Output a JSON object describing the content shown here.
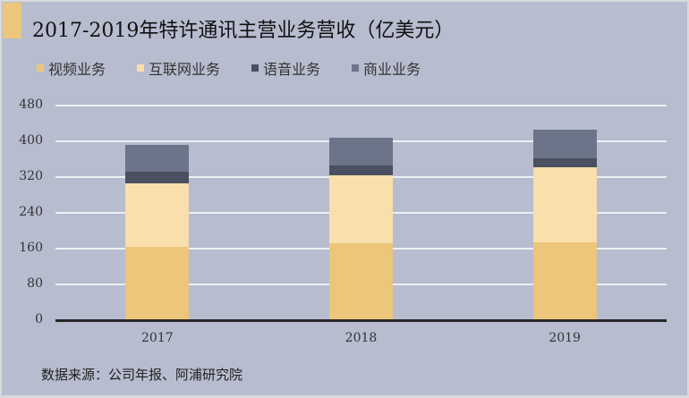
{
  "title": "2017-2019年特许通讯主营业务营收（亿美元）",
  "source": "数据来源：公司年报、阿浦研究院",
  "colors": {
    "background": "#b7bccf",
    "accent": "#ecc67a",
    "gridline": "#eef0f4",
    "axis": "#262626"
  },
  "legend": [
    {
      "label": "视频业务",
      "color": "#ecc67a"
    },
    {
      "label": "互联网业务",
      "color": "#f8dfab"
    },
    {
      "label": "语音业务",
      "color": "#4a5060"
    },
    {
      "label": "商业业务",
      "color": "#6c7489"
    }
  ],
  "chart_data": {
    "type": "bar",
    "stacked": true,
    "title": "2017-2019年特许通讯主营业务营收（亿美元）",
    "xlabel": "",
    "ylabel": "",
    "categories": [
      "2017",
      "2018",
      "2019"
    ],
    "series": [
      {
        "name": "视频业务",
        "color": "#ecc67a",
        "values": [
          164,
          172,
          174
        ]
      },
      {
        "name": "互联网业务",
        "color": "#f8dfab",
        "values": [
          142,
          152,
          168
        ]
      },
      {
        "name": "语音业务",
        "color": "#4a5060",
        "values": [
          26,
          22,
          20
        ]
      },
      {
        "name": "商业业务",
        "color": "#6c7489",
        "values": [
          60,
          62,
          64
        ]
      }
    ],
    "totals": [
      392,
      408,
      426
    ],
    "ylim": [
      0,
      480
    ],
    "yticks": [
      0,
      80,
      160,
      240,
      320,
      400,
      480
    ],
    "grid": true,
    "legend_position": "top-left",
    "source": "数据来源：公司年报、阿浦研究院"
  }
}
